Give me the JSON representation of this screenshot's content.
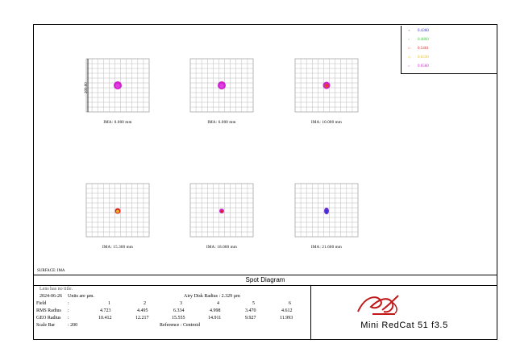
{
  "surface": "SURFACE: IMA",
  "title": "Spot Diagram",
  "scale_label": "200.00",
  "legend": [
    {
      "wavelength": "0.4360",
      "color": "#3030e0",
      "marker": "+"
    },
    {
      "wavelength": "0.4860",
      "color": "#30d030",
      "marker": "×"
    },
    {
      "wavelength": "0.5461",
      "color": "#e02020",
      "marker": "□"
    },
    {
      "wavelength": "0.6330",
      "color": "#e0c020",
      "marker": "◇"
    },
    {
      "wavelength": "0.6560",
      "color": "#d020d0",
      "marker": "○"
    }
  ],
  "fields": [
    {
      "label": "IMA: 0.000 mm"
    },
    {
      "label": "IMA: 6.000 mm"
    },
    {
      "label": "IMA: 10.000 mm"
    },
    {
      "label": "IMA: 15.300 mm"
    },
    {
      "label": "IMA: 18.000 mm"
    },
    {
      "label": "IMA: 21.600 mm"
    }
  ],
  "info": {
    "line1": "Lens has no title.",
    "date": "2024-06-26",
    "units": "Units are µm.",
    "airy": "Airy Disk Radius : 2.329 µm",
    "field_label": "Field",
    "colon": ":",
    "field_numbers": [
      "1",
      "2",
      "3",
      "4",
      "5",
      "6"
    ],
    "rms_label": "RMS Radius",
    "rms_values": [
      "4.723",
      "4.495",
      "6.334",
      "4.998",
      "3.470",
      "4.612"
    ],
    "geo_label": "GEO Radius",
    "geo_values": [
      "10.412",
      "12.217",
      "15.555",
      "14.911",
      "9.927",
      "11.993"
    ],
    "scale_bar_label": "Scale Bar",
    "scale_bar_value": ": 200",
    "reference": "Reference : Centroid"
  },
  "lens_name": "Mini RedCat 51 f3.5"
}
